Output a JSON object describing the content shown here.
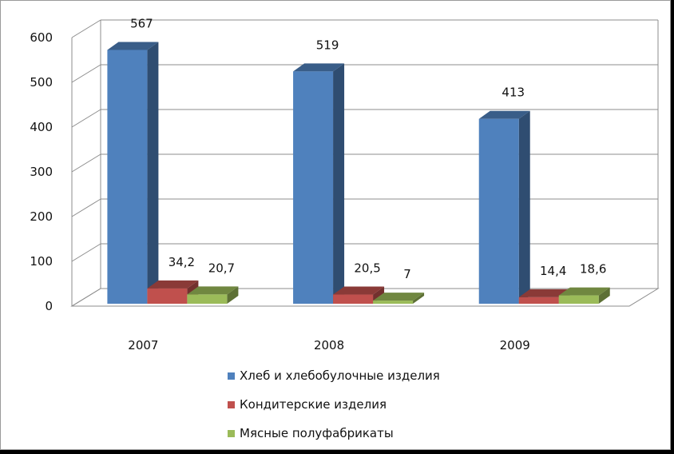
{
  "chart_data": {
    "type": "bar",
    "title": "",
    "xlabel": "",
    "ylabel": "",
    "categories": [
      "2007",
      "2008",
      "2009"
    ],
    "ylim": [
      0,
      600
    ],
    "yticks": [
      0,
      100,
      200,
      300,
      400,
      500,
      600
    ],
    "grid": true,
    "legend_position": "bottom",
    "series": [
      {
        "name": "Хлеб и хлебобулочные изделия",
        "values": [
          567,
          519,
          413
        ],
        "labels": [
          "567",
          "519",
          "413"
        ],
        "color": "#4F81BD"
      },
      {
        "name": "Кондитерские изделия",
        "values": [
          34.2,
          20.5,
          14.4
        ],
        "labels": [
          "34,2",
          "20,5",
          "14,4"
        ],
        "color": "#C0504D"
      },
      {
        "name": "Мясные полуфабрикаты",
        "values": [
          20.7,
          7,
          18.6
        ],
        "labels": [
          "20,7",
          "7",
          "18,6"
        ],
        "color": "#9BBB59"
      }
    ]
  }
}
